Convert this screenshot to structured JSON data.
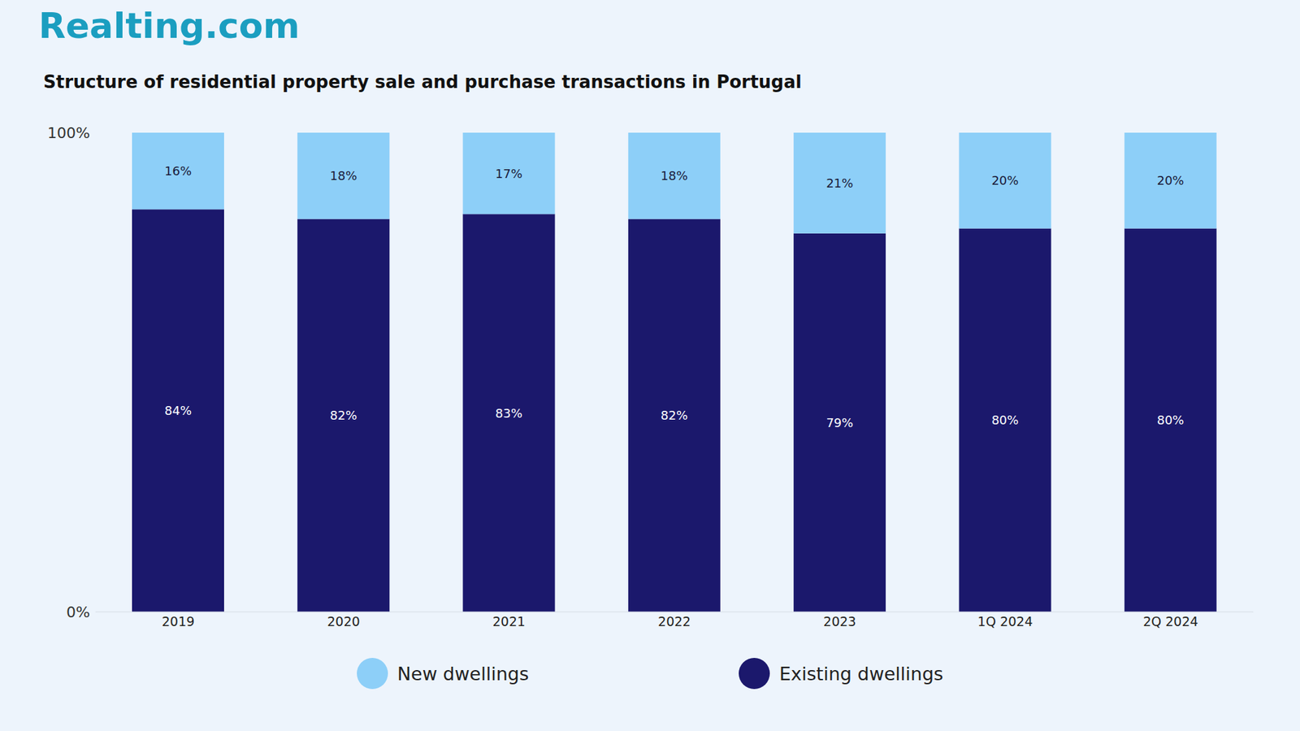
{
  "chart_data": {
    "type": "bar",
    "title": "Structure of residential property sale and purchase transactions in Portugal",
    "annotations": [
      "Realting.com"
    ],
    "categories": [
      "2019",
      "2020",
      "2021",
      "2022",
      "2023",
      "1Q 2024",
      "2Q 2024"
    ],
    "series": [
      {
        "name": "New dwellings",
        "color": "#8dcff8",
        "values": [
          16,
          18,
          17,
          18,
          21,
          20,
          20
        ],
        "value_labels": [
          "16%",
          "18%",
          "17%",
          "18%",
          "21%",
          "20%",
          "20%"
        ]
      },
      {
        "name": "Existing dwellings",
        "color": "#1b186c",
        "values": [
          84,
          82,
          83,
          82,
          79,
          80,
          80
        ],
        "value_labels": [
          "84%",
          "82%",
          "83%",
          "82%",
          "79%",
          "80%",
          "80%"
        ]
      }
    ],
    "stacked": true,
    "data_labels": true,
    "ylim": [
      0,
      100
    ],
    "yticks": [
      {
        "value": 0,
        "label": "0%"
      },
      {
        "value": 100,
        "label": "100%"
      }
    ],
    "grid": false,
    "legend": "bottom"
  }
}
